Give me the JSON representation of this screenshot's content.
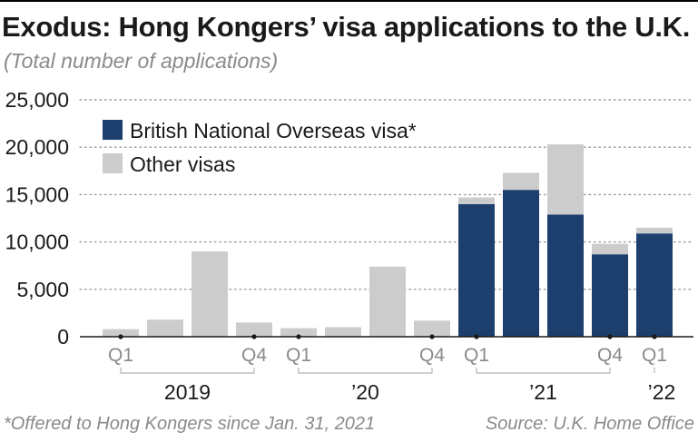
{
  "title": "Exodus: Hong Kongers’ visa applications to the U.K.",
  "subtitle": "(Total number of applications)",
  "footnote": "*Offered to Hong Kongers since Jan. 31, 2021",
  "source": "Source: U.K. Home Office",
  "colors": {
    "bno": "#1c3f6e",
    "other": "#cccccc",
    "grid": "#9a9a9a",
    "muted": "#8a8a8a"
  },
  "chart_data": {
    "type": "bar",
    "stacked": true,
    "categories": [
      "2019 Q1",
      "2019 Q2",
      "2019 Q3",
      "2019 Q4",
      "2020 Q1",
      "2020 Q2",
      "2020 Q3",
      "2020 Q4",
      "2021 Q1",
      "2021 Q2",
      "2021 Q3",
      "2021 Q4",
      "2022 Q1"
    ],
    "series": [
      {
        "name": "British National Overseas visa*",
        "values": [
          0,
          0,
          0,
          0,
          0,
          0,
          0,
          0,
          14000,
          15500,
          12900,
          8700,
          10900
        ]
      },
      {
        "name": "Other visas",
        "values": [
          800,
          1800,
          9000,
          1500,
          900,
          1000,
          7400,
          1700,
          700,
          1800,
          7400,
          1100,
          600
        ]
      }
    ],
    "ylim": [
      0,
      25000
    ],
    "yticks": [
      0,
      5000,
      10000,
      15000,
      20000,
      25000
    ],
    "ytick_labels": [
      "0",
      "5,000",
      "10,000",
      "15,000",
      "20,000",
      "25,000"
    ],
    "grid": "horizontal dotted",
    "legend_position": "top-left",
    "quarter_labels": [
      {
        "index": 0,
        "label": "Q1"
      },
      {
        "index": 3,
        "label": "Q4"
      },
      {
        "index": 4,
        "label": "Q1"
      },
      {
        "index": 7,
        "label": "Q4"
      },
      {
        "index": 8,
        "label": "Q1"
      },
      {
        "index": 11,
        "label": "Q4"
      },
      {
        "index": 12,
        "label": "Q1"
      }
    ],
    "year_groups": [
      {
        "label": "2019",
        "start": 0,
        "end": 3
      },
      {
        "label": "’20",
        "start": 4,
        "end": 7
      },
      {
        "label": "’21",
        "start": 8,
        "end": 11
      },
      {
        "label": "’22",
        "start": 12,
        "end": 12
      }
    ]
  }
}
